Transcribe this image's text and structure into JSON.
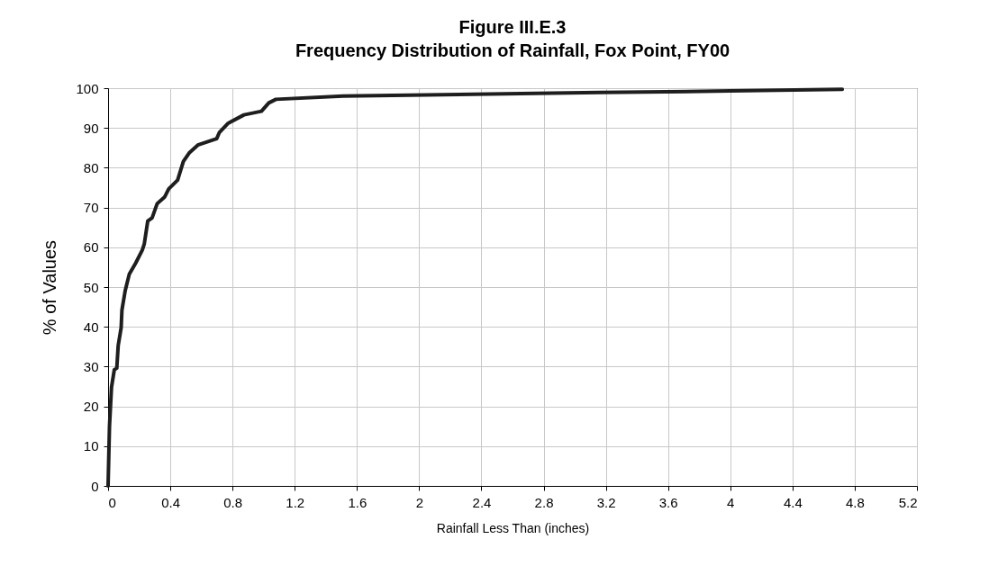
{
  "chart_data": {
    "type": "line",
    "title": "Figure III.E.3",
    "subtitle": "Frequency Distribution of Rainfall, Fox Point, FY00",
    "xlabel": "Rainfall Less Than (inches)",
    "ylabel": "% of Values",
    "x": [
      0,
      0.009,
      0.022,
      0.04,
      0.056,
      0.065,
      0.084,
      0.089,
      0.11,
      0.136,
      0.177,
      0.22,
      0.233,
      0.255,
      0.283,
      0.316,
      0.363,
      0.39,
      0.447,
      0.484,
      0.521,
      0.577,
      0.698,
      0.716,
      0.772,
      0.874,
      0.986,
      1.033,
      1.079,
      1.51,
      3.16,
      4.0,
      4.72
    ],
    "series": [
      {
        "color": "#1e1e1e",
        "values": [
          0,
          15,
          24.8,
          29.2,
          29.6,
          35.3,
          39.8,
          44.2,
          49.1,
          53.2,
          56,
          59.3,
          60.9,
          66.6,
          67.4,
          71,
          72.6,
          74.7,
          76.9,
          81.6,
          83.7,
          85.7,
          87.3,
          88.9,
          91.2,
          93.3,
          94.2,
          96.3,
          97.2,
          98.0,
          98.9,
          99.3,
          99.7
        ]
      }
    ],
    "xlim": [
      0,
      5.2
    ],
    "xticks": [
      0,
      0.4,
      0.8,
      1.2,
      1.6,
      2,
      2.4,
      2.8,
      3.2,
      3.6,
      4,
      4.4,
      4.8,
      5.2
    ],
    "ylim": [
      0,
      100
    ],
    "yticks": [
      0,
      10,
      20,
      30,
      40,
      50,
      60,
      70,
      80,
      90,
      100
    ],
    "grid": true,
    "marker": "none",
    "line_style": "solid"
  }
}
